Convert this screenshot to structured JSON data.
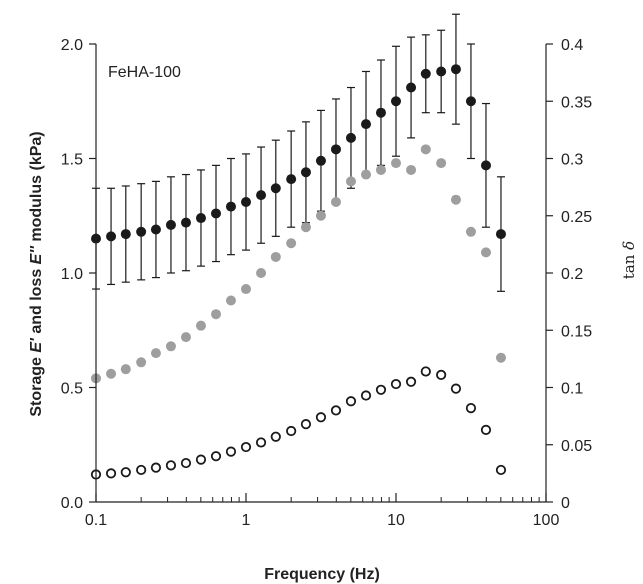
{
  "chart_data": {
    "type": "scatter",
    "title": "",
    "annotation": "FeHA-100",
    "xscale": "log",
    "xlim": [
      0.1,
      100
    ],
    "ylim": [
      0,
      2.0
    ],
    "y2lim": [
      0,
      0.4
    ],
    "xticks": [
      "0.1",
      "1",
      "10",
      "100"
    ],
    "yticks": [
      "0.0",
      "0.5",
      "1.0",
      "1.5",
      "2.0"
    ],
    "y2ticks": [
      "0",
      "0.05",
      "0.1",
      "0.15",
      "0.2",
      "0.25",
      "0.3",
      "0.35",
      "0.4"
    ],
    "xlabel": "Frequency (Hz)",
    "ylabel": {
      "pre": "Storage ",
      "e1": "E'",
      "mid": " and loss ",
      "e2": "E''",
      "post": " modulus (kPa)"
    },
    "y2label": {
      "pre": "tan ",
      "sym": "δ"
    },
    "x": [
      0.1,
      0.126,
      0.158,
      0.2,
      0.251,
      0.316,
      0.398,
      0.501,
      0.631,
      0.794,
      1.0,
      1.26,
      1.58,
      2.0,
      2.51,
      3.16,
      3.98,
      5.01,
      6.31,
      7.94,
      10.0,
      12.6,
      15.8,
      20.0,
      25.1,
      31.6,
      39.8,
      50.1
    ],
    "series": [
      {
        "axis": "left",
        "color": "#1a1a1a",
        "fill": "filled",
        "values": [
          1.15,
          1.16,
          1.17,
          1.18,
          1.19,
          1.21,
          1.22,
          1.24,
          1.26,
          1.29,
          1.31,
          1.34,
          1.37,
          1.41,
          1.44,
          1.49,
          1.54,
          1.59,
          1.65,
          1.7,
          1.75,
          1.81,
          1.87,
          1.88,
          1.89,
          1.75,
          1.47,
          1.17
        ],
        "errors": [
          0.22,
          0.21,
          0.21,
          0.21,
          0.21,
          0.21,
          0.21,
          0.21,
          0.21,
          0.21,
          0.21,
          0.21,
          0.21,
          0.21,
          0.22,
          0.22,
          0.22,
          0.22,
          0.23,
          0.23,
          0.24,
          0.22,
          0.17,
          0.18,
          0.24,
          0.25,
          0.27,
          0.25
        ]
      },
      {
        "axis": "left",
        "color": "#9e9e9e",
        "fill": "filled",
        "values": [
          0.54,
          0.56,
          0.58,
          0.61,
          0.65,
          0.68,
          0.72,
          0.77,
          0.82,
          0.88,
          0.93,
          1.0,
          1.07,
          1.13,
          1.2,
          1.25,
          1.31,
          1.4,
          1.43,
          1.45,
          1.48,
          1.45,
          1.54,
          1.48,
          1.32,
          1.18,
          1.09,
          0.63
        ]
      },
      {
        "axis": "right",
        "color": "#1a1a1a",
        "fill": "open",
        "values": [
          0.024,
          0.025,
          0.026,
          0.028,
          0.03,
          0.032,
          0.034,
          0.037,
          0.04,
          0.044,
          0.048,
          0.052,
          0.057,
          0.062,
          0.068,
          0.074,
          0.08,
          0.088,
          0.093,
          0.098,
          0.103,
          0.105,
          0.114,
          0.111,
          0.099,
          0.082,
          0.063,
          0.028
        ]
      }
    ]
  }
}
